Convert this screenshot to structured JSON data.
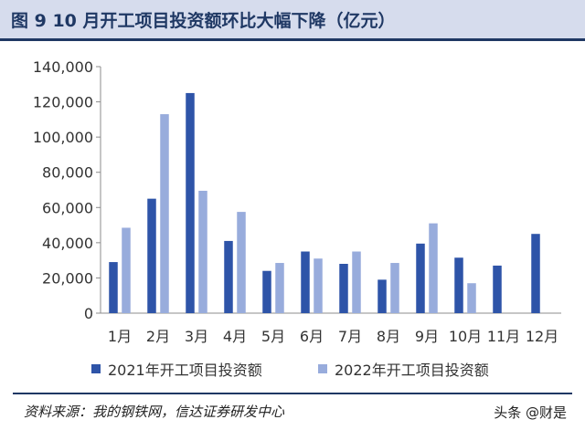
{
  "header": {
    "title": "图 9 10 月开工项目投资额环比大幅下降（亿元）"
  },
  "chart_data": {
    "type": "bar",
    "title": "图 9 10 月开工项目投资额环比大幅下降（亿元）",
    "xlabel": "",
    "ylabel": "",
    "ylim": [
      0,
      140000
    ],
    "yticks": [
      0,
      20000,
      40000,
      60000,
      80000,
      100000,
      120000,
      140000
    ],
    "ytick_labels": [
      "0",
      "20,000",
      "40,000",
      "60,000",
      "80,000",
      "100,000",
      "120,000",
      "140,000"
    ],
    "categories": [
      "1月",
      "2月",
      "3月",
      "4月",
      "5月",
      "6月",
      "7月",
      "8月",
      "9月",
      "10月",
      "11月",
      "12月"
    ],
    "series": [
      {
        "name": "2021年开工项目投资额",
        "color": "#2e54a8",
        "values": [
          29000,
          65000,
          125000,
          41000,
          24000,
          35000,
          28000,
          19000,
          39500,
          31500,
          27000,
          45000
        ]
      },
      {
        "name": "2022年开工项目投资额",
        "color": "#98acdc",
        "values": [
          48500,
          113000,
          69500,
          57500,
          28500,
          31000,
          35000,
          28500,
          51000,
          17000,
          null,
          null
        ]
      }
    ],
    "legend_position": "bottom",
    "grid": false
  },
  "footer": {
    "source": "资料来源：我的钢铁网，信达证券研发中心",
    "watermark": "头条 @财是"
  }
}
